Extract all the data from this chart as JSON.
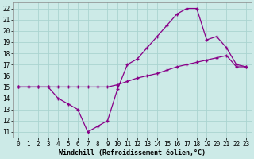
{
  "xlabel": "Windchill (Refroidissement éolien,°C)",
  "x_values": [
    0,
    1,
    2,
    3,
    4,
    5,
    6,
    7,
    8,
    9,
    10,
    11,
    12,
    13,
    14,
    15,
    16,
    17,
    18,
    19,
    20,
    21,
    22,
    23
  ],
  "line1_y": [
    15,
    15,
    15,
    15,
    14,
    13.5,
    13,
    11,
    11.5,
    12,
    14.8,
    17,
    17.5,
    18.5,
    19.5,
    20.5,
    21.5,
    22,
    22,
    19.2,
    19.5,
    18.5,
    17,
    16.8
  ],
  "line2_y": [
    15,
    15,
    15,
    15,
    15,
    15,
    15,
    15,
    15,
    15,
    15.2,
    15.5,
    15.8,
    16,
    16.2,
    16.5,
    16.8,
    17,
    17.2,
    17.4,
    17.6,
    17.8,
    16.8,
    16.8
  ],
  "line_color": "#880088",
  "bg_color": "#cceae7",
  "grid_color": "#aad4d0",
  "ylim": [
    10.5,
    22.5
  ],
  "xlim": [
    -0.5,
    23.5
  ],
  "yticks": [
    11,
    12,
    13,
    14,
    15,
    16,
    17,
    18,
    19,
    20,
    21,
    22
  ],
  "xticks": [
    0,
    1,
    2,
    3,
    4,
    5,
    6,
    7,
    8,
    9,
    10,
    11,
    12,
    13,
    14,
    15,
    16,
    17,
    18,
    19,
    20,
    21,
    22,
    23
  ],
  "marker": "+",
  "tick_fontsize": 5.5,
  "xlabel_fontsize": 6.0,
  "markersize": 3.5,
  "linewidth": 0.9
}
